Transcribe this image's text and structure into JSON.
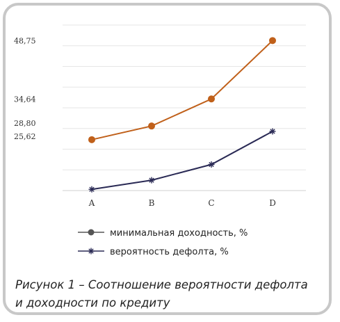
{
  "chart_data": {
    "type": "line",
    "categories": [
      "A",
      "B",
      "C",
      "D"
    ],
    "y_ticks": [
      "48,75",
      "34,64",
      "28,80",
      "25,62"
    ],
    "y_tick_values": [
      48.75,
      34.64,
      28.8,
      25.62
    ],
    "ylim": [
      12.5,
      52.5
    ],
    "grid": true,
    "legend_position": "bottom-left",
    "series": [
      {
        "name": "минимальная доходность, %",
        "values": [
          24.8,
          28.1,
          34.64,
          48.75
        ],
        "color": "#c0601a",
        "marker": "circle"
      },
      {
        "name": "вероятность дефолта, %",
        "values": [
          12.8,
          15.0,
          18.8,
          26.8
        ],
        "color": "#2a2a55",
        "marker": "star"
      }
    ]
  },
  "caption": {
    "line1": "Рисунок 1 – Соотношение вероятности дефолта",
    "line2": "и доходности по кредиту"
  }
}
